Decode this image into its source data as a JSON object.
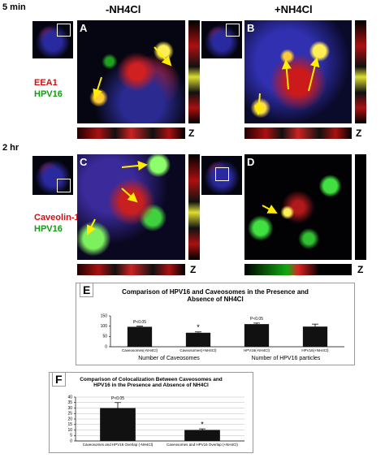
{
  "time_labels": [
    "5 min",
    "2 hr"
  ],
  "conditions": [
    "-NH4Cl",
    "+NH4Cl"
  ],
  "panels": [
    "A",
    "B",
    "C",
    "D"
  ],
  "stains": [
    {
      "red": "EEA1",
      "green": "HPV16"
    },
    {
      "red": "Caveolin-1",
      "green": "HPV16"
    }
  ],
  "z_labels": [
    "Z",
    "Z",
    "Z",
    "Z"
  ],
  "chart_data": [
    {
      "type": "bar",
      "panel_label": "E",
      "title": "Comparison of  HPV16 and Caveosomes in the Presence and Absence of NH4Cl",
      "categories": [
        "Caveosomes(-NH4Cl)",
        "Caveosomes(+NH4Cl)",
        "HPV16(-NH4Cl)",
        "HPV16(+NH4Cl)"
      ],
      "values": [
        97,
        68,
        110,
        98
      ],
      "errors": [
        3,
        4,
        5,
        12
      ],
      "color": "#111111",
      "group_labels": [
        "Number of Caveosomes",
        "Number of HPV16 particles"
      ],
      "annotations": [
        {
          "text": "P<0.05",
          "category": "Caveosomes(-NH4Cl)"
        },
        {
          "text": "*",
          "category": "Caveosomes(+NH4Cl)"
        },
        {
          "text": "P<0.05",
          "category": "HPV16(-NH4Cl)"
        }
      ],
      "ylim": [
        0,
        150
      ],
      "yticks": [
        0,
        50,
        100,
        150
      ],
      "grid": false
    },
    {
      "type": "bar",
      "panel_label": "F",
      "title": "Comparison of Colocalization Between Caveosomes and HPV16 in the Presence and Absence of NH4Cl",
      "categories": [
        "Caveosomes and HPV16 Overlap (-NH4Cl)",
        "Caveosomes and HPV16 Overlap (+NH4Cl)"
      ],
      "values": [
        30,
        10
      ],
      "errors": [
        5,
        1
      ],
      "color": "#111111",
      "annotations": [
        {
          "text": "P<0.05",
          "category": "Caveosomes and HPV16 Overlap (-NH4Cl)"
        },
        {
          "text": "*",
          "category": "Caveosomes and HPV16 Overlap (+NH4Cl)"
        }
      ],
      "ylim": [
        0,
        40
      ],
      "yticks": [
        0,
        5,
        10,
        15,
        20,
        25,
        30,
        35,
        40
      ],
      "grid": true
    }
  ]
}
